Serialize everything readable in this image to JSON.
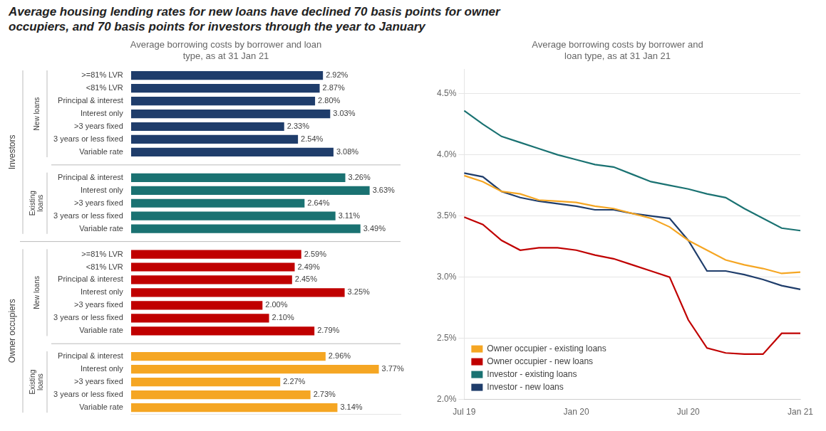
{
  "title": "Average housing lending rates for new loans have declined 70 basis points for owner\noccupiers, and 70 basis points for investors through the year to January",
  "chart_data": [
    {
      "type": "bar",
      "orientation": "horizontal",
      "subtitle": "Average borrowing costs by borrower and loan\ntype, as at 31 Jan 21",
      "groups": [
        {
          "name": "Investors",
          "subgroups": [
            {
              "name": "New loans",
              "color": "#1F3D6B",
              "categories": [
                ">=81% LVR",
                "<81% LVR",
                "Principal & interest",
                "Interest only",
                ">3 years fixed",
                "3 years or less fixed",
                "Variable rate"
              ],
              "values": [
                2.92,
                2.87,
                2.8,
                3.03,
                2.33,
                2.54,
                3.08
              ],
              "value_labels": [
                "2.92%",
                "2.87%",
                "2.80%",
                "3.03%",
                "2.33%",
                "2.54%",
                "3.08%"
              ]
            },
            {
              "name": "Existing\nloans",
              "color": "#1A7272",
              "categories": [
                "Principal & interest",
                "Interest only",
                ">3 years fixed",
                "3 years or less fixed",
                "Variable rate"
              ],
              "values": [
                3.26,
                3.63,
                2.64,
                3.11,
                3.49
              ],
              "value_labels": [
                "3.26%",
                "3.63%",
                "2.64%",
                "3.11%",
                "3.49%"
              ]
            }
          ]
        },
        {
          "name": "Owner occupiers",
          "subgroups": [
            {
              "name": "New loans",
              "color": "#C00000",
              "categories": [
                ">=81% LVR",
                "<81% LVR",
                "Principal & interest",
                "Interest only",
                ">3 years fixed",
                "3 years or less fixed",
                "Variable rate"
              ],
              "values": [
                2.59,
                2.49,
                2.45,
                3.25,
                2.0,
                2.1,
                2.79
              ],
              "value_labels": [
                "2.59%",
                "2.49%",
                "2.45%",
                "3.25%",
                "2.00%",
                "2.10%",
                "2.79%"
              ]
            },
            {
              "name": "Existing\nloans",
              "color": "#F5A623",
              "categories": [
                "Principal & interest",
                "Interest only",
                ">3 years fixed",
                "3 years or less fixed",
                "Variable rate"
              ],
              "values": [
                2.96,
                3.77,
                2.27,
                2.73,
                3.14
              ],
              "value_labels": [
                "2.96%",
                "3.77%",
                "2.27%",
                "2.73%",
                "3.14%"
              ]
            }
          ]
        }
      ],
      "xlim": [
        0,
        4.1
      ],
      "data_labels": true,
      "tick_labels": "y",
      "grid": false
    },
    {
      "type": "line",
      "subtitle": "Average borrowing costs by borrower and\nloan type, as at 31 Jan 21",
      "categories": [
        "Jul 19",
        null,
        null,
        null,
        null,
        null,
        "Jan 20",
        null,
        null,
        null,
        null,
        null,
        "Jul 20",
        null,
        null,
        null,
        null,
        null,
        "Jan 21"
      ],
      "series": [
        {
          "name": "Owner occupier - existing loans",
          "color": "#F5A623",
          "values": [
            3.83,
            3.78,
            3.7,
            3.68,
            3.63,
            3.62,
            3.61,
            3.58,
            3.56,
            3.52,
            3.48,
            3.41,
            3.3,
            3.22,
            3.14,
            3.1,
            3.07,
            3.03,
            3.04
          ]
        },
        {
          "name": "Owner occupier - new loans",
          "color": "#C00000",
          "values": [
            3.49,
            3.43,
            3.3,
            3.22,
            3.24,
            3.24,
            3.22,
            3.18,
            3.15,
            3.1,
            3.05,
            3.0,
            2.65,
            2.42,
            2.38,
            2.37,
            2.37,
            2.54,
            2.54
          ]
        },
        {
          "name": "Investor - existing loans",
          "color": "#1A7272",
          "values": [
            4.36,
            4.25,
            4.15,
            4.1,
            4.05,
            4.0,
            3.96,
            3.92,
            3.9,
            3.84,
            3.78,
            3.75,
            3.72,
            3.68,
            3.65,
            3.56,
            3.48,
            3.4,
            3.38
          ]
        },
        {
          "name": "Investor - new loans",
          "color": "#1F3D6B",
          "values": [
            3.85,
            3.82,
            3.7,
            3.65,
            3.62,
            3.6,
            3.58,
            3.55,
            3.55,
            3.52,
            3.5,
            3.48,
            3.3,
            3.05,
            3.05,
            3.02,
            2.98,
            2.93,
            2.9
          ]
        }
      ],
      "ylim": [
        2.0,
        4.7
      ],
      "yticks": [
        {
          "value": 2.0,
          "label": "2.0%"
        },
        {
          "value": 2.5,
          "label": "2.5%"
        },
        {
          "value": 3.0,
          "label": "3.0%"
        },
        {
          "value": 3.5,
          "label": "3.5%"
        },
        {
          "value": 4.0,
          "label": "4.0%"
        },
        {
          "value": 4.5,
          "label": "4.5%"
        }
      ],
      "grid": true,
      "legend": "lower left"
    }
  ]
}
